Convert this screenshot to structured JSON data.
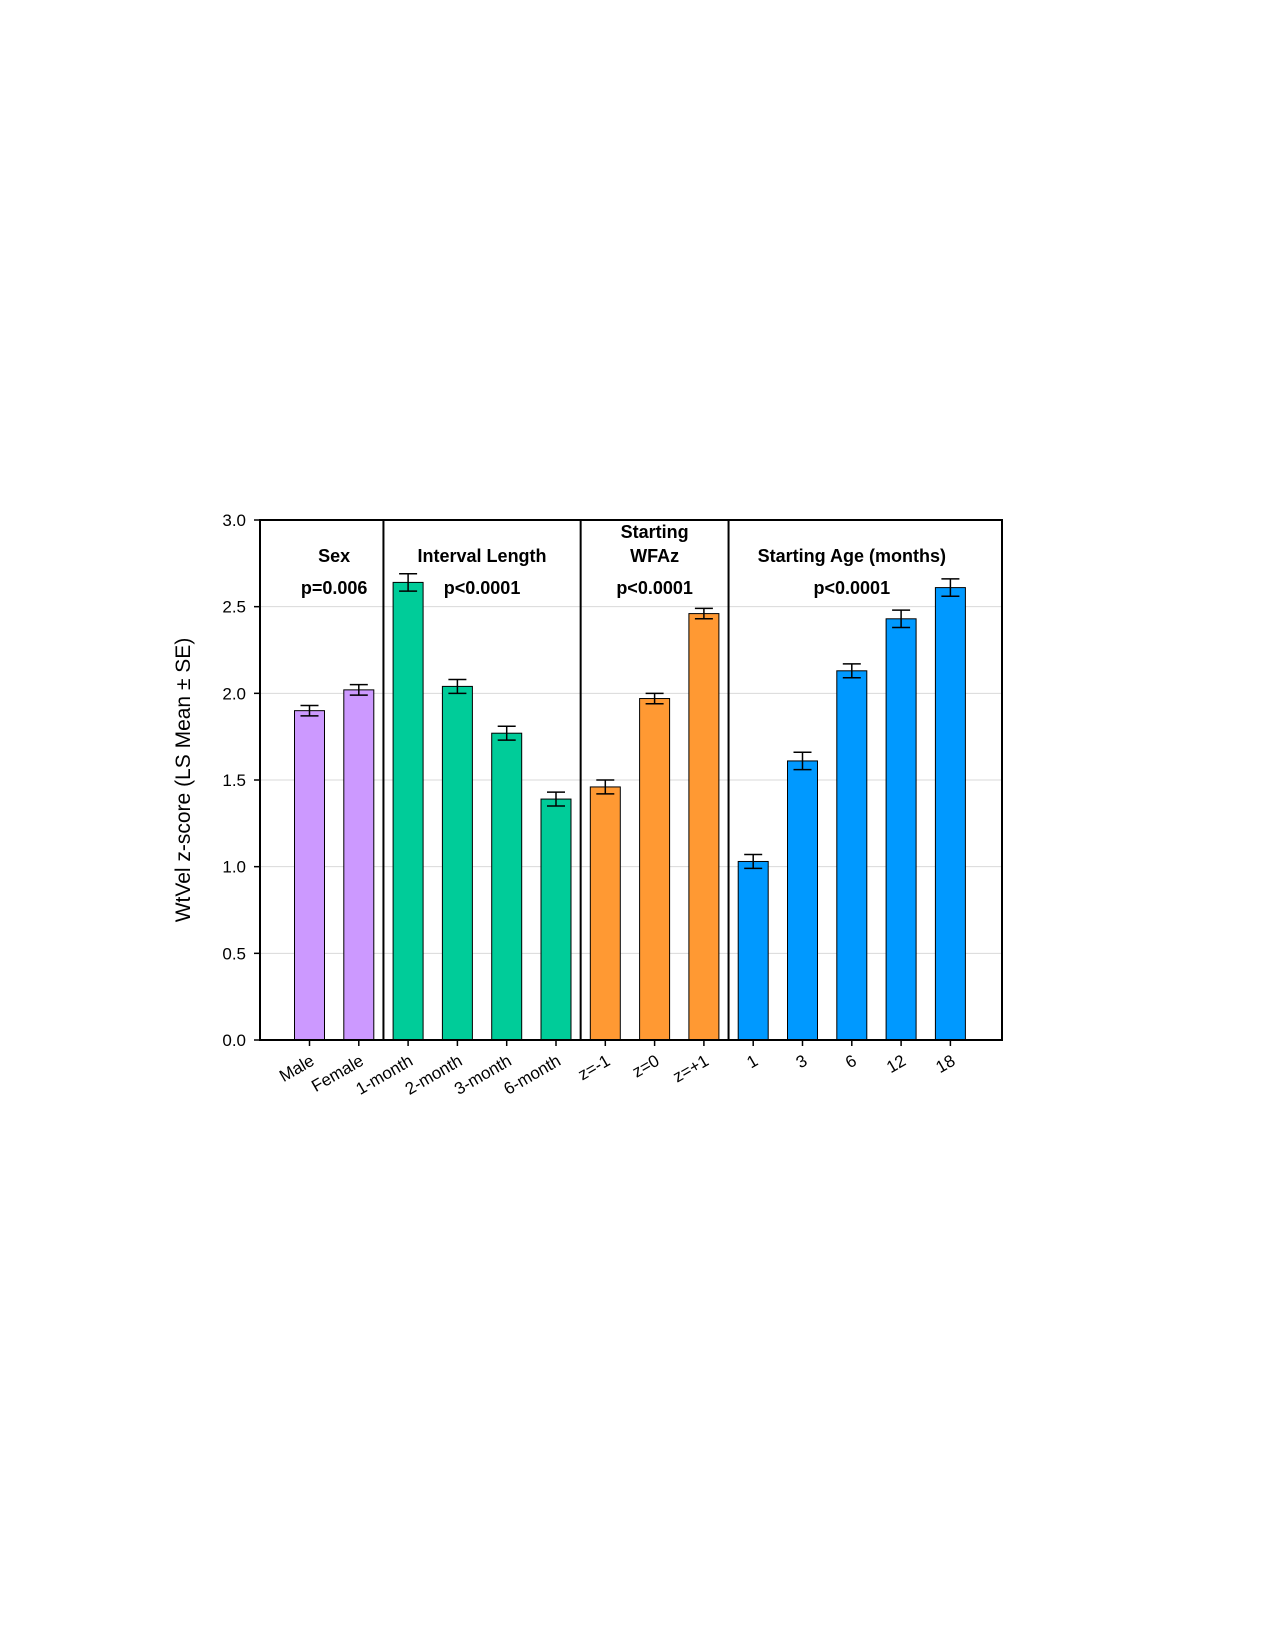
{
  "chart_data": {
    "type": "bar",
    "ylabel": "WtVel z-score (LS Mean ± SE)",
    "ylim": [
      0,
      3.0
    ],
    "yticks": [
      "0.0",
      "0.5",
      "1.0",
      "1.5",
      "2.0",
      "2.5",
      "3.0"
    ],
    "grid": true,
    "categories": [
      "Male",
      "Female",
      "1-month",
      "2-month",
      "3-month",
      "6-month",
      "z=-1",
      "z=0",
      "z=+1",
      "1",
      "3",
      "6",
      "12",
      "18"
    ],
    "values": [
      1.9,
      2.02,
      2.64,
      2.04,
      1.77,
      1.39,
      1.46,
      1.97,
      2.46,
      1.03,
      1.61,
      2.13,
      2.43,
      2.61
    ],
    "errors": [
      0.03,
      0.03,
      0.05,
      0.04,
      0.04,
      0.04,
      0.04,
      0.03,
      0.03,
      0.04,
      0.05,
      0.04,
      0.05,
      0.05
    ],
    "groups": [
      {
        "title_lines": [
          "Sex"
        ],
        "p": "p=0.006",
        "start": 0,
        "end": 1,
        "color": "#cc99ff"
      },
      {
        "title_lines": [
          "Interval Length"
        ],
        "p": "p<0.0001",
        "start": 2,
        "end": 5,
        "color": "#00cc99"
      },
      {
        "title_lines": [
          "Starting",
          "WFAz"
        ],
        "p": "p<0.0001",
        "start": 6,
        "end": 8,
        "color": "#ff9933"
      },
      {
        "title_lines": [
          "Starting Age (months)"
        ],
        "p": "p<0.0001",
        "start": 9,
        "end": 13,
        "color": "#0099ff"
      }
    ]
  }
}
